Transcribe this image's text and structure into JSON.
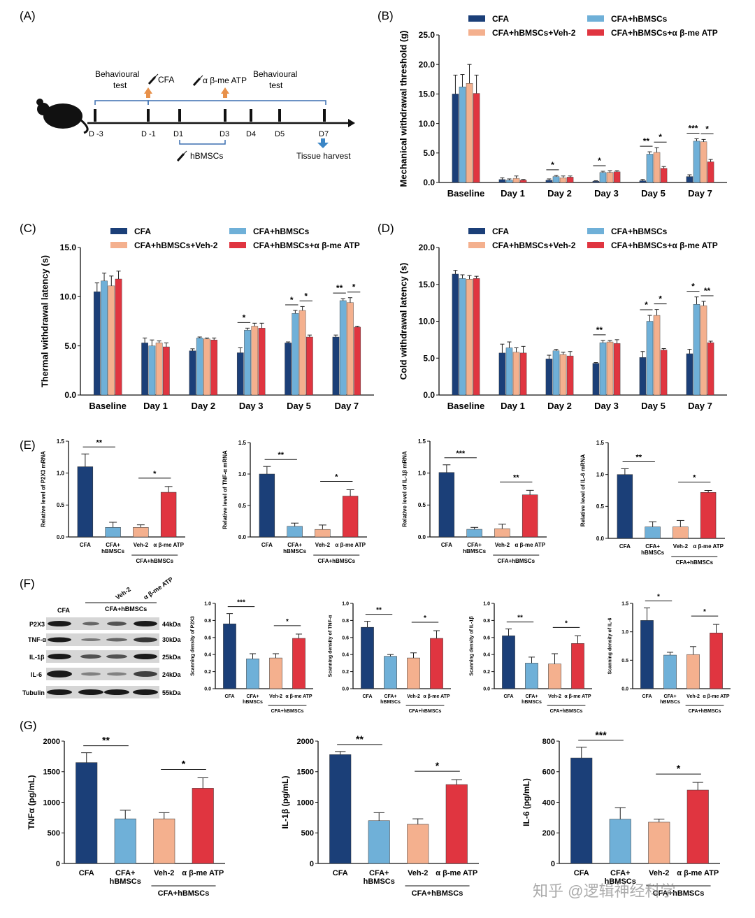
{
  "colors": {
    "cfa": "#1b3f78",
    "hbmsc": "#6fb0d8",
    "veh": "#f4b08e",
    "atp": "#e03540"
  },
  "panel_labels": {
    "a": "(A)",
    "b": "(B)",
    "c": "(C)",
    "d": "(D)",
    "e": "(E)",
    "f": "(F)",
    "g": "(G)"
  },
  "panel_a": {
    "behav1": "Behavioural",
    "behav1b": "test",
    "behav2": "Behavioural",
    "behav2b": "test",
    "cfa": "CFA",
    "atp": "α β-me ATP",
    "hbmscs": "hBMSCs",
    "harvest": "Tissue harvest",
    "days": [
      "D -3",
      "D -1",
      "D1",
      "D3",
      "D4",
      "D5",
      "D7"
    ]
  },
  "legend": {
    "items": [
      "CFA",
      "CFA+hBMSCs",
      "CFA+hBMSCs+Veh-2",
      "CFA+hBMSCs+α β-me ATP"
    ]
  },
  "chart_data": [
    {
      "id": "B",
      "type": "bar",
      "title": "",
      "ylabel": "Mechanical withdrawal threshold (g)",
      "ylim": [
        0,
        25
      ],
      "yticks": [
        "0.0",
        "5.0",
        "10.0",
        "15.0",
        "20.0",
        "25.0"
      ],
      "categories": [
        "Baseline",
        "Day 1",
        "Day 2",
        "Day 3",
        "Day 5",
        "Day 7"
      ],
      "series": [
        {
          "name": "CFA",
          "values": [
            15.0,
            0.5,
            0.4,
            0.2,
            0.3,
            1.0
          ],
          "err": [
            3.2,
            0.3,
            0.2,
            0.1,
            0.2,
            0.3
          ]
        },
        {
          "name": "CFA+hBMSCs",
          "values": [
            16.2,
            0.4,
            1.0,
            1.7,
            4.8,
            7.0
          ],
          "err": [
            2.1,
            0.2,
            0.2,
            0.2,
            0.4,
            0.4
          ]
        },
        {
          "name": "CFA+hBMSCs+Veh-2",
          "values": [
            16.8,
            0.7,
            0.8,
            1.7,
            5.1,
            6.9
          ],
          "err": [
            3.2,
            0.4,
            0.3,
            0.3,
            0.8,
            0.4
          ]
        },
        {
          "name": "CFA+hBMSCs+α β-me ATP",
          "values": [
            15.1,
            0.4,
            0.9,
            1.8,
            2.4,
            3.5
          ],
          "err": [
            3.1,
            0.1,
            0.2,
            0.2,
            0.3,
            0.4
          ]
        }
      ],
      "annotations": [
        {
          "cat": 2,
          "a": 0,
          "b": 1,
          "label": "*"
        },
        {
          "cat": 3,
          "a": 0,
          "b": 1,
          "label": "*"
        },
        {
          "cat": 4,
          "a": 0,
          "b": 1,
          "label": "**"
        },
        {
          "cat": 4,
          "a": 2,
          "b": 3,
          "label": "*"
        },
        {
          "cat": 5,
          "a": 0,
          "b": 1,
          "label": "***"
        },
        {
          "cat": 5,
          "a": 2,
          "b": 3,
          "label": "*"
        }
      ]
    },
    {
      "id": "C",
      "type": "bar",
      "title": "",
      "ylabel": "Thermal withdrawal latency (s)",
      "ylim": [
        0,
        15
      ],
      "yticks": [
        "0.0",
        "5.0",
        "10.0",
        "15.0"
      ],
      "categories": [
        "Baseline",
        "Day 1",
        "Day 2",
        "Day 3",
        "Day 5",
        "Day 7"
      ],
      "series": [
        {
          "name": "CFA",
          "values": [
            10.5,
            5.3,
            4.5,
            4.3,
            5.3,
            5.9
          ],
          "err": [
            0.9,
            0.5,
            0.2,
            0.5,
            0.1,
            0.2
          ]
        },
        {
          "name": "CFA+hBMSCs",
          "values": [
            11.6,
            5.0,
            5.8,
            6.6,
            8.3,
            9.6
          ],
          "err": [
            0.8,
            0.6,
            0.1,
            0.2,
            0.3,
            0.2
          ]
        },
        {
          "name": "CFA+hBMSCs+Veh-2",
          "values": [
            11.1,
            5.3,
            5.7,
            7.0,
            8.6,
            9.4
          ],
          "err": [
            1.0,
            0.2,
            0.1,
            0.3,
            0.4,
            0.5
          ]
        },
        {
          "name": "CFA+hBMSCs+α β-me ATP",
          "values": [
            11.8,
            4.9,
            5.6,
            6.8,
            5.9,
            6.9
          ],
          "err": [
            0.8,
            0.4,
            0.2,
            0.5,
            0.2,
            0.1
          ]
        }
      ],
      "annotations": [
        {
          "cat": 3,
          "a": 0,
          "b": 1,
          "label": "*"
        },
        {
          "cat": 4,
          "a": 0,
          "b": 1,
          "label": "*"
        },
        {
          "cat": 4,
          "a": 2,
          "b": 3,
          "label": "*"
        },
        {
          "cat": 5,
          "a": 0,
          "b": 1,
          "label": "**"
        },
        {
          "cat": 5,
          "a": 2,
          "b": 3,
          "label": "*"
        }
      ]
    },
    {
      "id": "D",
      "type": "bar",
      "title": "",
      "ylabel": "Cold withdrawal latency (s)",
      "ylim": [
        0,
        20
      ],
      "yticks": [
        "0.0",
        "5.0",
        "10.0",
        "15.0",
        "20.0"
      ],
      "categories": [
        "Baseline",
        "Day 1",
        "Day 2",
        "Day 3",
        "Day 5",
        "Day 7"
      ],
      "series": [
        {
          "name": "CFA",
          "values": [
            16.4,
            5.7,
            4.9,
            4.3,
            5.1,
            5.6
          ],
          "err": [
            0.5,
            1.2,
            0.5,
            0.1,
            0.8,
            0.6
          ]
        },
        {
          "name": "CFA+hBMSCs",
          "values": [
            15.8,
            6.4,
            6.0,
            7.1,
            10.0,
            12.3
          ],
          "err": [
            0.5,
            0.8,
            0.2,
            0.3,
            0.8,
            1.0
          ]
        },
        {
          "name": "CFA+hBMSCs+Veh-2",
          "values": [
            15.7,
            5.8,
            5.5,
            7.2,
            10.8,
            12.1
          ],
          "err": [
            0.5,
            0.6,
            0.3,
            0.2,
            0.8,
            0.6
          ]
        },
        {
          "name": "CFA+hBMSCs+α β-me ATP",
          "values": [
            15.8,
            5.7,
            5.3,
            7.0,
            6.1,
            7.1
          ],
          "err": [
            0.3,
            0.9,
            0.6,
            0.5,
            0.2,
            0.2
          ]
        }
      ],
      "annotations": [
        {
          "cat": 3,
          "a": 0,
          "b": 1,
          "label": "**"
        },
        {
          "cat": 4,
          "a": 0,
          "b": 1,
          "label": "*"
        },
        {
          "cat": 4,
          "a": 2,
          "b": 3,
          "label": "*"
        },
        {
          "cat": 5,
          "a": 0,
          "b": 1,
          "label": "*"
        },
        {
          "cat": 5,
          "a": 2,
          "b": 3,
          "label": "**"
        }
      ]
    },
    {
      "id": "E1",
      "type": "bar",
      "ylabel": "Relative level of P2X3 mRNA",
      "ylim": [
        0,
        1.5
      ],
      "yticks": [
        "0.0",
        "0.5",
        "1.0",
        "1.5"
      ],
      "categories": [
        "CFA",
        "CFA+ hBMSCs",
        "Veh-2",
        "α β-me ATP"
      ],
      "group_label": "CFA+hBMSCs",
      "values": [
        1.1,
        0.15,
        0.15,
        0.7
      ],
      "err": [
        0.2,
        0.08,
        0.04,
        0.09
      ],
      "annotations": [
        {
          "a": 0,
          "b": 1,
          "label": "**"
        },
        {
          "a": 2,
          "b": 3,
          "label": "*"
        }
      ]
    },
    {
      "id": "E2",
      "type": "bar",
      "ylabel": "Relative level of TNF-α mRNA",
      "ylim": [
        0,
        1.5
      ],
      "yticks": [
        "0.0",
        "0.5",
        "1.0",
        "1.5"
      ],
      "categories": [
        "CFA",
        "CFA+ hBMSCs",
        "Veh-2",
        "α β-me ATP"
      ],
      "group_label": "CFA+hBMSCs",
      "values": [
        1.0,
        0.17,
        0.12,
        0.65
      ],
      "err": [
        0.12,
        0.05,
        0.07,
        0.1
      ],
      "annotations": [
        {
          "a": 0,
          "b": 1,
          "label": "**"
        },
        {
          "a": 2,
          "b": 3,
          "label": "*"
        }
      ]
    },
    {
      "id": "E3",
      "type": "bar",
      "ylabel": "Relative level of IL-1β mRNA",
      "ylim": [
        0,
        1.5
      ],
      "yticks": [
        "0.0",
        "0.5",
        "1.0",
        "1.5"
      ],
      "categories": [
        "CFA",
        "CFA+ hBMSCs",
        "Veh-2",
        "α β-me ATP"
      ],
      "group_label": "CFA+hBMSCs",
      "values": [
        1.01,
        0.12,
        0.13,
        0.66
      ],
      "err": [
        0.12,
        0.03,
        0.07,
        0.07
      ],
      "annotations": [
        {
          "a": 0,
          "b": 1,
          "label": "***"
        },
        {
          "a": 2,
          "b": 3,
          "label": "**"
        }
      ]
    },
    {
      "id": "E4",
      "type": "bar",
      "ylabel": "Relative level of IL-6 mRNA",
      "ylim": [
        0,
        1.5
      ],
      "yticks": [
        "0.0",
        "0.5",
        "1.0",
        "1.5"
      ],
      "categories": [
        "CFA",
        "CFA+ hBMSCs",
        "Veh-2",
        "α β-me ATP"
      ],
      "group_label": "CFA+hBMSCs",
      "values": [
        1.0,
        0.18,
        0.18,
        0.72
      ],
      "err": [
        0.09,
        0.08,
        0.1,
        0.03
      ],
      "annotations": [
        {
          "a": 0,
          "b": 1,
          "label": "**"
        },
        {
          "a": 2,
          "b": 3,
          "label": "*"
        }
      ]
    },
    {
      "id": "F1",
      "type": "bar",
      "ylabel": "Scanning density of P2X3",
      "ylim": [
        0,
        1.0
      ],
      "yticks": [
        "0.0",
        "0.2",
        "0.4",
        "0.6",
        "0.8",
        "1.0"
      ],
      "categories": [
        "CFA",
        "CFA+ hBMSCs",
        "Veh-2",
        "α β-me ATP"
      ],
      "group_label": "CFA+hBMSCs",
      "values": [
        0.76,
        0.35,
        0.36,
        0.59
      ],
      "err": [
        0.12,
        0.06,
        0.05,
        0.05
      ],
      "annotations": [
        {
          "a": 0,
          "b": 1,
          "label": "***"
        },
        {
          "a": 2,
          "b": 3,
          "label": "*"
        }
      ]
    },
    {
      "id": "F2",
      "type": "bar",
      "ylabel": "Scanning density of TNF-α",
      "ylim": [
        0,
        1.0
      ],
      "yticks": [
        "0.0",
        "0.2",
        "0.4",
        "0.6",
        "0.8",
        "1.0"
      ],
      "categories": [
        "CFA",
        "CFA+ hBMSCs",
        "Veh-2",
        "α β-me ATP"
      ],
      "group_label": "CFA+hBMSCs",
      "values": [
        0.72,
        0.38,
        0.36,
        0.59
      ],
      "err": [
        0.07,
        0.02,
        0.06,
        0.09
      ],
      "annotations": [
        {
          "a": 0,
          "b": 1,
          "label": "**"
        },
        {
          "a": 2,
          "b": 3,
          "label": "*"
        }
      ]
    },
    {
      "id": "F3",
      "type": "bar",
      "ylabel": "Scanning density of IL-1β",
      "ylim": [
        0,
        1.0
      ],
      "yticks": [
        "0.0",
        "0.2",
        "0.4",
        "0.6",
        "0.8",
        "1.0"
      ],
      "categories": [
        "CFA",
        "CFA+ hBMSCs",
        "Veh-2",
        "α β-me ATP"
      ],
      "group_label": "CFA+hBMSCs",
      "values": [
        0.62,
        0.3,
        0.29,
        0.53
      ],
      "err": [
        0.08,
        0.07,
        0.12,
        0.09
      ],
      "annotations": [
        {
          "a": 0,
          "b": 1,
          "label": "**"
        },
        {
          "a": 2,
          "b": 3,
          "label": "*"
        }
      ]
    },
    {
      "id": "F4",
      "type": "bar",
      "ylabel": "Scanning density of IL-6",
      "ylim": [
        0,
        1.5
      ],
      "yticks": [
        "0.0",
        "0.5",
        "1.0",
        "1.5"
      ],
      "categories": [
        "CFA",
        "CFA+ hBMSCs",
        "Veh-2",
        "α β-me ATP"
      ],
      "group_label": "CFA+hBMSCs",
      "values": [
        1.2,
        0.59,
        0.6,
        0.98
      ],
      "err": [
        0.22,
        0.05,
        0.14,
        0.15
      ],
      "annotations": [
        {
          "a": 0,
          "b": 1,
          "label": "*"
        },
        {
          "a": 2,
          "b": 3,
          "label": "*"
        }
      ]
    },
    {
      "id": "G1",
      "type": "bar",
      "ylabel": "TNFα (pg/mL)",
      "ylim": [
        0,
        2000
      ],
      "yticks": [
        "0",
        "500",
        "1000",
        "1500",
        "2000"
      ],
      "categories": [
        "CFA",
        "CFA+ hBMSCs",
        "Veh-2",
        "α β-me ATP"
      ],
      "group_label": "CFA+hBMSCs",
      "values": [
        1650,
        730,
        730,
        1230
      ],
      "err": [
        160,
        140,
        100,
        170
      ],
      "annotations": [
        {
          "a": 0,
          "b": 1,
          "label": "**"
        },
        {
          "a": 2,
          "b": 3,
          "label": "*"
        }
      ]
    },
    {
      "id": "G2",
      "type": "bar",
      "ylabel": "IL-1β (pg/mL)",
      "ylim": [
        0,
        2000
      ],
      "yticks": [
        "0",
        "500",
        "1000",
        "1500",
        "2000"
      ],
      "categories": [
        "CFA",
        "CFA+ hBMSCs",
        "Veh-2",
        "α β-me ATP"
      ],
      "group_label": "CFA+hBMSCs",
      "values": [
        1780,
        700,
        640,
        1290
      ],
      "err": [
        50,
        130,
        90,
        80
      ],
      "annotations": [
        {
          "a": 0,
          "b": 1,
          "label": "**"
        },
        {
          "a": 2,
          "b": 3,
          "label": "*"
        }
      ]
    },
    {
      "id": "G3",
      "type": "bar",
      "ylabel": "IL-6 (pg/mL)",
      "ylim": [
        0,
        800
      ],
      "yticks": [
        "0",
        "200",
        "400",
        "600",
        "800"
      ],
      "categories": [
        "CFA",
        "CFA+ hBMSCs",
        "Veh-2",
        "α β-me ATP"
      ],
      "group_label": "CFA+hBMSCs",
      "values": [
        690,
        290,
        270,
        480
      ],
      "err": [
        70,
        75,
        20,
        50
      ],
      "annotations": [
        {
          "a": 0,
          "b": 1,
          "label": "***"
        },
        {
          "a": 2,
          "b": 3,
          "label": "*"
        }
      ]
    }
  ],
  "western_blot": {
    "header_cfa": "CFA",
    "header_group": "CFA+hBMSCs",
    "header_veh": "Veh-2",
    "header_atp": "α β-me ATP",
    "rows": [
      {
        "protein": "P2X3",
        "kda": "44kDa"
      },
      {
        "protein": "TNF-α",
        "kda": "30kDa"
      },
      {
        "protein": "IL-1β",
        "kda": "25kDa"
      },
      {
        "protein": "IL-6",
        "kda": "24kDa"
      },
      {
        "protein": "Tubulin",
        "kda": "55kDa"
      }
    ]
  },
  "watermark": "知乎 @逻辑神经科学"
}
